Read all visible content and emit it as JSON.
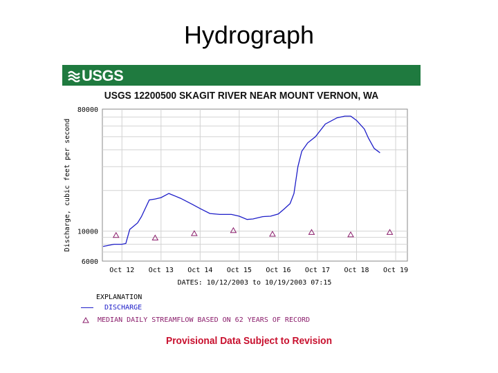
{
  "slide": {
    "title": "Hydrograph"
  },
  "banner": {
    "logo_text": "USGS",
    "brand_color": "#1f7a3f"
  },
  "header": {
    "station_title": "USGS 12200500 SKAGIT RIVER NEAR MOUNT VERNON, WA"
  },
  "chart_data": {
    "type": "line",
    "title": "USGS 12200500 SKAGIT RIVER NEAR MOUNT VERNON, WA",
    "ylabel": "Discharge, cubic feet per second",
    "xlabel": "DATES: 10/12/2003 to 10/19/2003 07:15",
    "y_scale": "log",
    "ylim": [
      6000,
      80000
    ],
    "y_ticks": [
      6000,
      10000,
      80000
    ],
    "x_tick_labels": [
      "Oct 12",
      "Oct 13",
      "Oct 14",
      "Oct 15",
      "Oct 16",
      "Oct 17",
      "Oct 18",
      "Oct 19"
    ],
    "xlim_days": [
      11.5,
      19.3
    ],
    "grid": true,
    "series": [
      {
        "name": "DISCHARGE",
        "color": "#1c1cc8",
        "x": [
          11.52,
          11.8,
          12.0,
          12.1,
          12.2,
          12.4,
          12.5,
          12.7,
          12.85,
          13.0,
          13.2,
          13.5,
          13.8,
          14.0,
          14.25,
          14.5,
          14.8,
          15.0,
          15.2,
          15.35,
          15.6,
          15.8,
          16.0,
          16.15,
          16.3,
          16.4,
          16.5,
          16.6,
          16.75,
          16.95,
          17.2,
          17.5,
          17.7,
          17.85,
          18.0,
          18.2,
          18.3,
          18.45,
          18.6
        ],
        "y": [
          7700,
          8000,
          8000,
          8100,
          10300,
          11500,
          12800,
          17000,
          17300,
          17700,
          19000,
          17500,
          15800,
          14700,
          13500,
          13300,
          13300,
          12900,
          12200,
          12300,
          12800,
          12900,
          13400,
          14600,
          16000,
          19000,
          30000,
          39000,
          45000,
          50000,
          62000,
          69000,
          71000,
          71000,
          66000,
          57000,
          49000,
          41000,
          38000
        ]
      },
      {
        "name": "MEDIAN DAILY STREAMFLOW BASED ON 62 YEARS OF RECORD",
        "color": "#8a1d6b",
        "marker": "triangle",
        "x": [
          11.85,
          12.85,
          13.85,
          14.85,
          15.85,
          16.85,
          17.85,
          18.85
        ],
        "y": [
          9300,
          8900,
          9600,
          10100,
          9500,
          9800,
          9400,
          9800
        ]
      }
    ],
    "legend": {
      "title": "EXPLANATION",
      "entries": [
        "DISCHARGE",
        "MEDIAN DAILY STREAMFLOW BASED ON 62 YEARS OF RECORD"
      ],
      "placement": "bottom-left"
    }
  },
  "footer": {
    "notice": "Provisional Data Subject to Revision",
    "notice_color": "#c8102e"
  }
}
